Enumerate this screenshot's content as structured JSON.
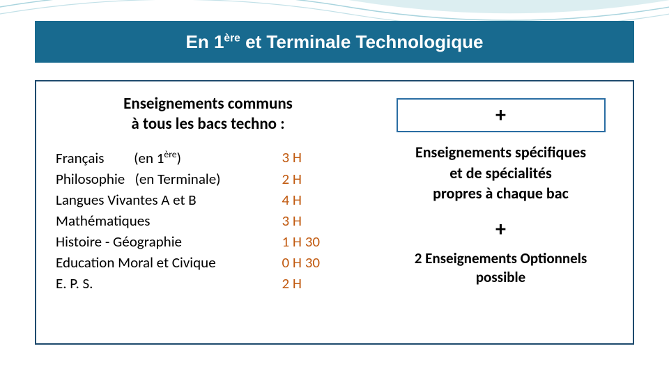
{
  "colors": {
    "header_bg": "#186a8f",
    "header_text": "#ffffff",
    "box_border": "#1e4a6d",
    "plus_border": "#2a6da3",
    "hours_color": "#c15a10",
    "swoosh_fill": "#d8ecef",
    "swoosh_stroke": "#a9d4de"
  },
  "title": {
    "prefix": "En 1",
    "sup": "ère",
    "suffix": "  et Terminale Technologique"
  },
  "left": {
    "header_line1": "Enseignements communs",
    "header_line2": "à tous les bacs techno :",
    "subjects": [
      {
        "name_html": "Français&nbsp;&nbsp;&nbsp;&nbsp;&nbsp;&nbsp;&nbsp;&nbsp;&nbsp;(en 1<sup>ère</sup>)",
        "hours": "3 H"
      },
      {
        "name_html": "Philosophie&nbsp;&nbsp;&nbsp;(en Terminale)",
        "hours": "2 H"
      },
      {
        "name_html": "Langues Vivantes A et B",
        "hours": "4 H"
      },
      {
        "name_html": "Mathématiques",
        "hours": "3 H"
      },
      {
        "name_html": "Histoire - Géographie",
        "hours": "1 H 30"
      },
      {
        "name_html": "Education Moral et Civique",
        "hours": "0 H 30"
      },
      {
        "name_html": "E. P. S.",
        "hours": "2 H"
      }
    ]
  },
  "right": {
    "plus_top": "+",
    "line1": "Enseignements spécifiques",
    "line2": "et de spécialités",
    "line3": "propres à chaque bac",
    "plus_mid": "+",
    "opt_line1": "2 Enseignements Optionnels",
    "opt_line2": "possible"
  }
}
